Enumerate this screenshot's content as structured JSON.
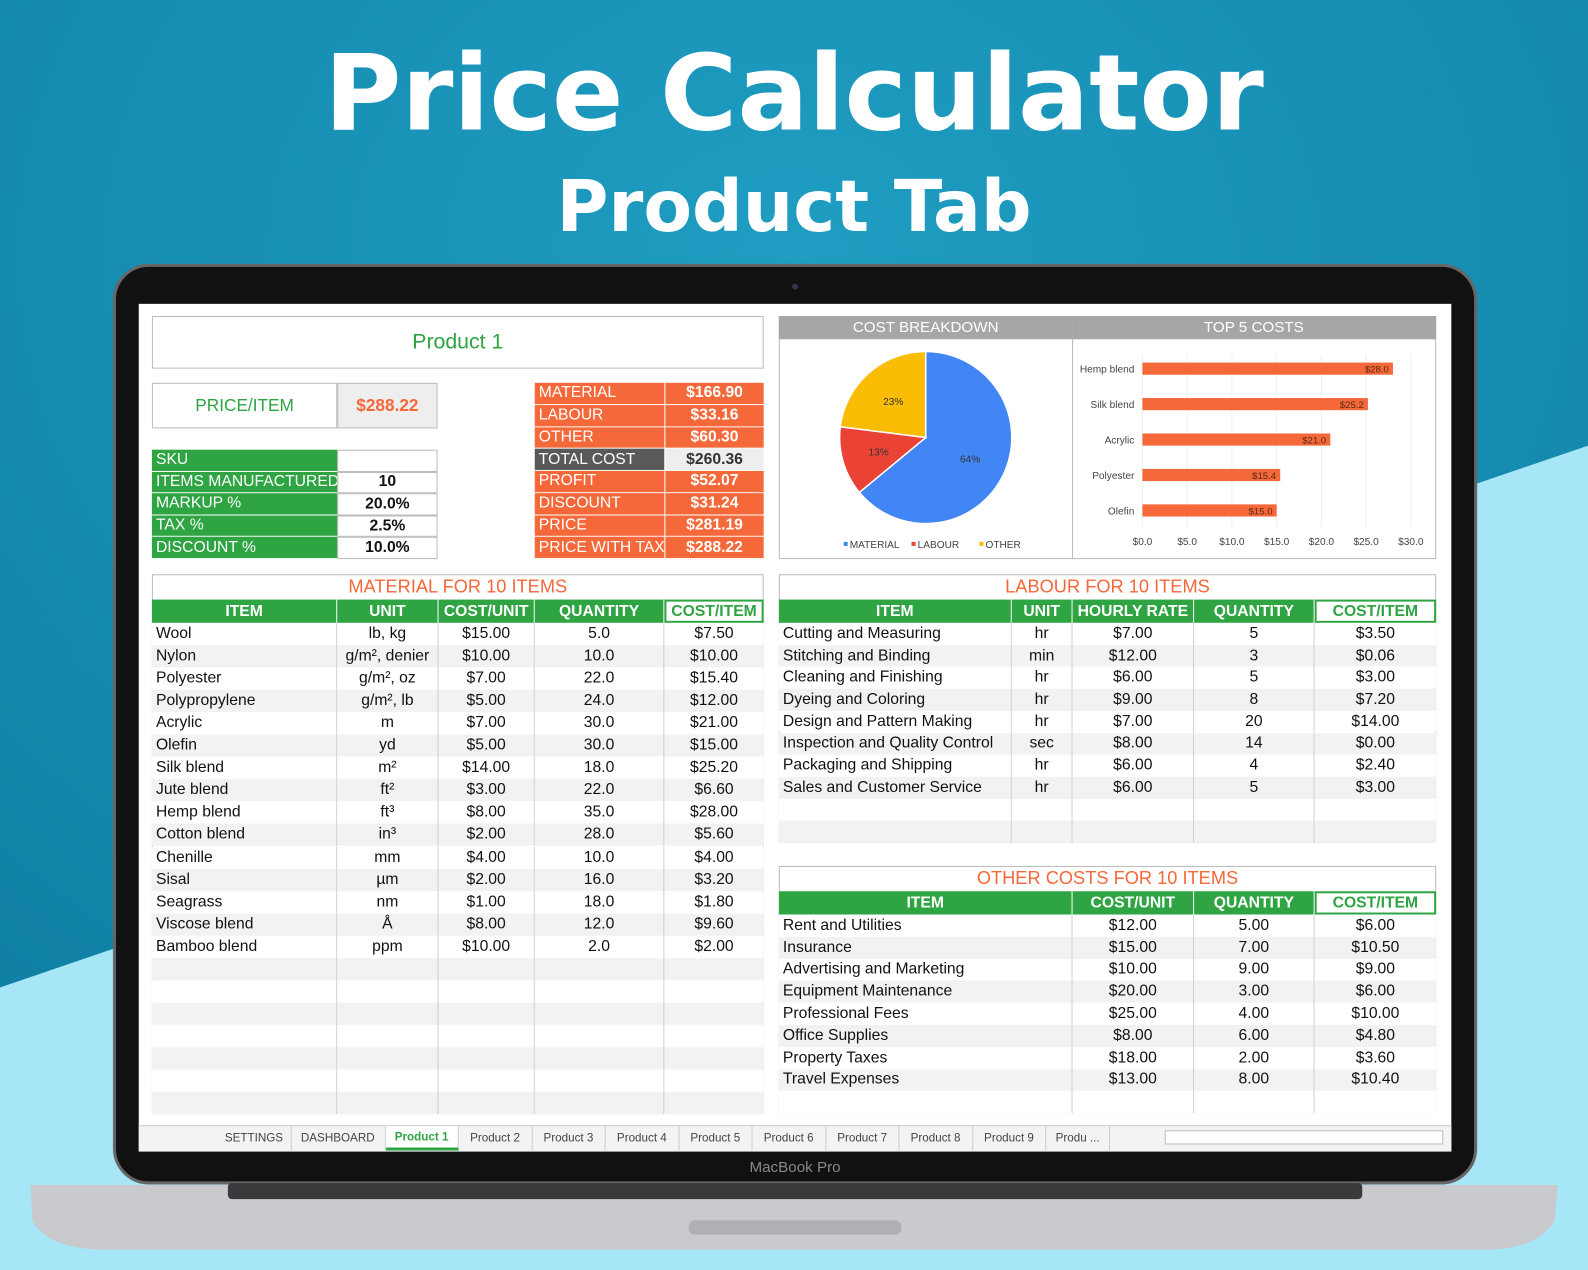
{
  "header": {
    "title": "Price Calculator",
    "subtitle": "Product Tab"
  },
  "laptop_label": "MacBook Pro",
  "product_name": "Product 1",
  "price_item": {
    "label": "PRICE/ITEM",
    "value": "$288.22"
  },
  "settings": {
    "rows": [
      {
        "label": "SKU"
      },
      {
        "label": "ITEMS MANUFACTURED",
        "value": "10"
      },
      {
        "label": "MARKUP %",
        "value": "20.0%"
      },
      {
        "label": "TAX %",
        "value": "2.5%"
      },
      {
        "label": "DISCOUNT %",
        "value": "10.0%"
      }
    ]
  },
  "summary": {
    "rows": [
      [
        "MATERIAL",
        "$166.90"
      ],
      [
        "LABOUR",
        "$33.16"
      ],
      [
        "OTHER",
        "$60.30"
      ],
      [
        "TOTAL COST",
        "$260.36"
      ],
      [
        "PROFIT",
        "$52.07"
      ],
      [
        "DISCOUNT",
        "$31.24"
      ],
      [
        "PRICE",
        "$281.19"
      ],
      [
        "PRICE WITH TAX",
        "$288.22"
      ]
    ]
  },
  "material": {
    "title": "MATERIAL FOR 10 ITEMS",
    "columns": [
      "ITEM",
      "UNIT",
      "COST/UNIT",
      "QUANTITY",
      "COST/ITEM"
    ],
    "rows": [
      [
        "Wool",
        "lb, kg",
        "$15.00",
        "5.0",
        "$7.50"
      ],
      [
        "Nylon",
        "g/m², denier",
        "$10.00",
        "10.0",
        "$10.00"
      ],
      [
        "Polyester",
        "g/m², oz",
        "$7.00",
        "22.0",
        "$15.40"
      ],
      [
        "Polypropylene",
        "g/m², lb",
        "$5.00",
        "24.0",
        "$12.00"
      ],
      [
        "Acrylic",
        "m",
        "$7.00",
        "30.0",
        "$21.00"
      ],
      [
        "Olefin",
        "yd",
        "$5.00",
        "30.0",
        "$15.00"
      ],
      [
        "Silk blend",
        "m²",
        "$14.00",
        "18.0",
        "$25.20"
      ],
      [
        "Jute blend",
        "ft²",
        "$3.00",
        "22.0",
        "$6.60"
      ],
      [
        "Hemp blend",
        "ft³",
        "$8.00",
        "35.0",
        "$28.00"
      ],
      [
        "Cotton blend",
        "in³",
        "$2.00",
        "28.0",
        "$5.60"
      ],
      [
        "Chenille",
        "mm",
        "$4.00",
        "10.0",
        "$4.00"
      ],
      [
        "Sisal",
        "µm",
        "$2.00",
        "16.0",
        "$3.20"
      ],
      [
        "Seagrass",
        "nm",
        "$1.00",
        "18.0",
        "$1.80"
      ],
      [
        "Viscose blend",
        "Å",
        "$8.00",
        "12.0",
        "$9.60"
      ],
      [
        "Bamboo blend",
        "ppm",
        "$10.00",
        "2.0",
        "$2.00"
      ]
    ]
  },
  "labour": {
    "title": "LABOUR FOR 10 ITEMS",
    "columns": [
      "ITEM",
      "UNIT",
      "HOURLY RATE",
      "QUANTITY",
      "COST/ITEM"
    ],
    "rows": [
      [
        "Cutting and Measuring",
        "hr",
        "$7.00",
        "5",
        "$3.50"
      ],
      [
        "Stitching and Binding",
        "min",
        "$12.00",
        "3",
        "$0.06"
      ],
      [
        "Cleaning and Finishing",
        "hr",
        "$6.00",
        "5",
        "$3.00"
      ],
      [
        "Dyeing and Coloring",
        "hr",
        "$9.00",
        "8",
        "$7.20"
      ],
      [
        "Design and Pattern Making",
        "hr",
        "$7.00",
        "20",
        "$14.00"
      ],
      [
        "Inspection and Quality Control",
        "sec",
        "$8.00",
        "14",
        "$0.00"
      ],
      [
        "Packaging and Shipping",
        "hr",
        "$6.00",
        "4",
        "$2.40"
      ],
      [
        "Sales and Customer Service",
        "hr",
        "$6.00",
        "5",
        "$3.00"
      ]
    ]
  },
  "other": {
    "title": "OTHER COSTS FOR 10 ITEMS",
    "columns": [
      "ITEM",
      "COST/UNIT",
      "QUANTITY",
      "COST/ITEM"
    ],
    "rows": [
      [
        "Rent and Utilities",
        "$12.00",
        "5.00",
        "$6.00"
      ],
      [
        "Insurance",
        "$15.00",
        "7.00",
        "$10.50"
      ],
      [
        "Advertising and Marketing",
        "$10.00",
        "9.00",
        "$9.00"
      ],
      [
        "Equipment Maintenance",
        "$20.00",
        "3.00",
        "$6.00"
      ],
      [
        "Professional Fees",
        "$25.00",
        "4.00",
        "$10.00"
      ],
      [
        "Office Supplies",
        "$8.00",
        "6.00",
        "$4.80"
      ],
      [
        "Property Taxes",
        "$18.00",
        "2.00",
        "$3.60"
      ],
      [
        "Travel Expenses",
        "$13.00",
        "8.00",
        "$10.40"
      ]
    ]
  },
  "chart_data": [
    {
      "type": "pie",
      "title": "COST BREAKDOWN",
      "categories": [
        "MATERIAL",
        "LABOUR",
        "OTHER"
      ],
      "values": [
        64,
        13,
        23
      ],
      "value_labels": [
        "64%",
        "13%",
        "23%"
      ],
      "colors": [
        "#4285f4",
        "#ea4335",
        "#fbbc04"
      ]
    },
    {
      "type": "bar",
      "orientation": "horizontal",
      "title": "TOP 5 COSTS",
      "categories": [
        "Hemp blend",
        "Silk blend",
        "Acrylic",
        "Polyester",
        "Olefin"
      ],
      "values": [
        28,
        25.2,
        21,
        15.4,
        15
      ],
      "value_labels": [
        "$28.0",
        "$25.2",
        "$21.0",
        "$15.4",
        "$15.0"
      ],
      "color": "#f4683a",
      "xlim": [
        0,
        30
      ],
      "xticks": [
        {
          "value": 0,
          "label": "$0.0"
        },
        {
          "value": 5,
          "label": "$5.0"
        },
        {
          "value": 10,
          "label": "$10.0"
        },
        {
          "value": 15,
          "label": "$15.0"
        },
        {
          "value": 20,
          "label": "$20.0"
        },
        {
          "value": 25,
          "label": "$25.0"
        },
        {
          "value": 30,
          "label": "$30.0"
        }
      ],
      "grid": true
    }
  ],
  "tabs": [
    "SETTINGS",
    "DASHBOARD",
    "Product 1",
    "Product 2",
    "Product 3",
    "Product 4",
    "Product 5",
    "Product 6",
    "Product 7",
    "Product 8",
    "Product 9",
    "Produ ..."
  ]
}
